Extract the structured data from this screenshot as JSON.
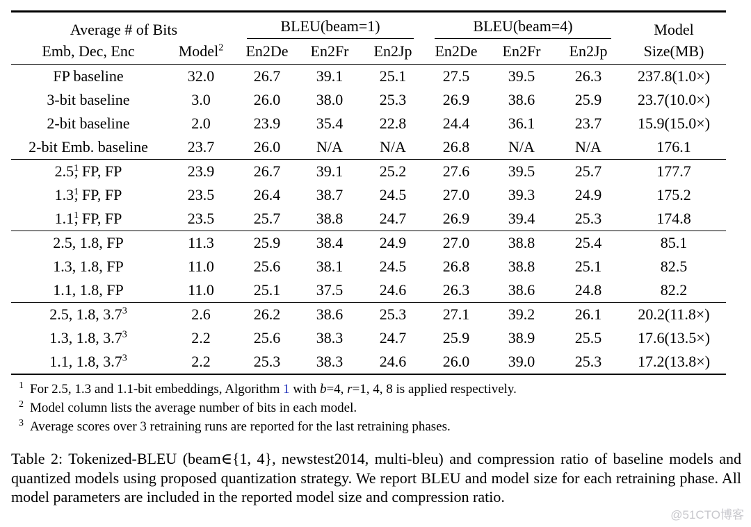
{
  "colors": {
    "text": "#000000",
    "rules": "#000000",
    "link_blue": "#2233bb",
    "watermark_gray": "#c7c7cc"
  },
  "table": {
    "column_groups": [
      {
        "label": "Average # of Bits",
        "colspan": 2,
        "cmidrule": false
      },
      {
        "label": "BLEU(beam=1)",
        "colspan": 3,
        "cmidrule": true
      },
      {
        "label": "BLEU(beam=4)",
        "colspan": 3,
        "cmidrule": true
      },
      {
        "label": "Model",
        "colspan": 1,
        "cmidrule": false
      }
    ],
    "columns": [
      {
        "label": "Emb, Dec, Enc"
      },
      {
        "label": "Model",
        "sup": "2"
      },
      {
        "label": "En2De"
      },
      {
        "label": "En2Fr"
      },
      {
        "label": "En2Jp"
      },
      {
        "label": "En2De"
      },
      {
        "label": "En2Fr"
      },
      {
        "label": "En2Jp"
      },
      {
        "label": "Size(MB)"
      }
    ],
    "groups": [
      {
        "rows": [
          {
            "label": {
              "pre": "FP baseline"
            },
            "values": [
              "32.0",
              "26.7",
              "39.1",
              "25.1",
              "27.5",
              "39.5",
              "26.3",
              "237.8(1.0×)"
            ]
          },
          {
            "label": {
              "pre": "3-bit baseline"
            },
            "values": [
              "3.0",
              "26.0",
              "38.0",
              "25.3",
              "26.9",
              "38.6",
              "25.9",
              "23.7(10.0×)"
            ]
          },
          {
            "label": {
              "pre": "2-bit baseline"
            },
            "values": [
              "2.0",
              "23.9",
              "35.4",
              "22.8",
              "24.4",
              "36.1",
              "23.7",
              "15.9(15.0×)"
            ]
          },
          {
            "label": {
              "pre": "2-bit Emb. baseline"
            },
            "values": [
              "23.7",
              "26.0",
              "N/A",
              "N/A",
              "26.8",
              "N/A",
              "N/A",
              "176.1"
            ]
          }
        ]
      },
      {
        "rows": [
          {
            "label": {
              "pre": "2.5",
              "sup": "1",
              "post": ", FP, FP",
              "tight": true
            },
            "values": [
              "23.9",
              "26.7",
              "39.1",
              "25.2",
              "27.6",
              "39.5",
              "25.7",
              "177.7"
            ]
          },
          {
            "label": {
              "pre": "1.3",
              "sup": "1",
              "post": ", FP, FP",
              "tight": true
            },
            "values": [
              "23.5",
              "26.4",
              "38.7",
              "24.5",
              "27.0",
              "39.3",
              "24.9",
              "175.2"
            ]
          },
          {
            "label": {
              "pre": "1.1",
              "sup": "1",
              "post": ", FP, FP",
              "tight": true
            },
            "values": [
              "23.5",
              "25.7",
              "38.8",
              "24.7",
              "26.9",
              "39.4",
              "25.3",
              "174.8"
            ]
          }
        ]
      },
      {
        "rows": [
          {
            "label": {
              "pre": "2.5, 1.8, FP"
            },
            "values": [
              "11.3",
              "25.9",
              "38.4",
              "24.9",
              "27.0",
              "38.8",
              "25.4",
              "85.1"
            ]
          },
          {
            "label": {
              "pre": "1.3, 1.8, FP"
            },
            "values": [
              "11.0",
              "25.6",
              "38.1",
              "24.5",
              "26.8",
              "38.8",
              "25.1",
              "82.5"
            ]
          },
          {
            "label": {
              "pre": "1.1, 1.8, FP"
            },
            "values": [
              "11.0",
              "25.1",
              "37.5",
              "24.6",
              "26.3",
              "38.6",
              "24.8",
              "82.2"
            ]
          }
        ]
      },
      {
        "rows": [
          {
            "label": {
              "pre": "2.5, 1.8, 3.7",
              "sup": "3"
            },
            "values": [
              "2.6",
              "26.2",
              "38.6",
              "25.3",
              "27.1",
              "39.2",
              "26.1",
              "20.2(11.8×)"
            ]
          },
          {
            "label": {
              "pre": "1.3, 1.8, 3.7",
              "sup": "3"
            },
            "values": [
              "2.2",
              "25.6",
              "38.3",
              "24.7",
              "25.9",
              "38.9",
              "25.5",
              "17.6(13.5×)"
            ]
          },
          {
            "label": {
              "pre": "1.1, 1.8, 3.7",
              "sup": "3"
            },
            "values": [
              "2.2",
              "25.3",
              "38.3",
              "24.6",
              "26.0",
              "39.0",
              "25.3",
              "17.2(13.8×)"
            ]
          }
        ]
      }
    ]
  },
  "footnotes": [
    {
      "marker": "1",
      "segments": [
        {
          "t": "For 2.5, 1.3 and 1.1-bit embeddings, Algorithm "
        },
        {
          "t": "1",
          "style": "link"
        },
        {
          "t": " with "
        },
        {
          "t": "b",
          "style": "italic"
        },
        {
          "t": "=4, "
        },
        {
          "t": "r",
          "style": "italic"
        },
        {
          "t": "=1, 4, 8 is applied respectively."
        }
      ]
    },
    {
      "marker": "2",
      "segments": [
        {
          "t": "Model column lists the average number of bits in each model."
        }
      ]
    },
    {
      "marker": "3",
      "segments": [
        {
          "t": "Average scores over 3 retraining runs are reported for the last retraining phases."
        }
      ]
    }
  ],
  "caption": "Table 2: Tokenized-BLEU (beam∈{1, 4}, newstest2014, multi-bleu) and compression ratio of baseline models and quantized models using proposed quantization strategy. We report BLEU and model size for each retraining phase. All model parameters are included in the reported model size and compression ratio.",
  "watermark": "@51CTO博客"
}
